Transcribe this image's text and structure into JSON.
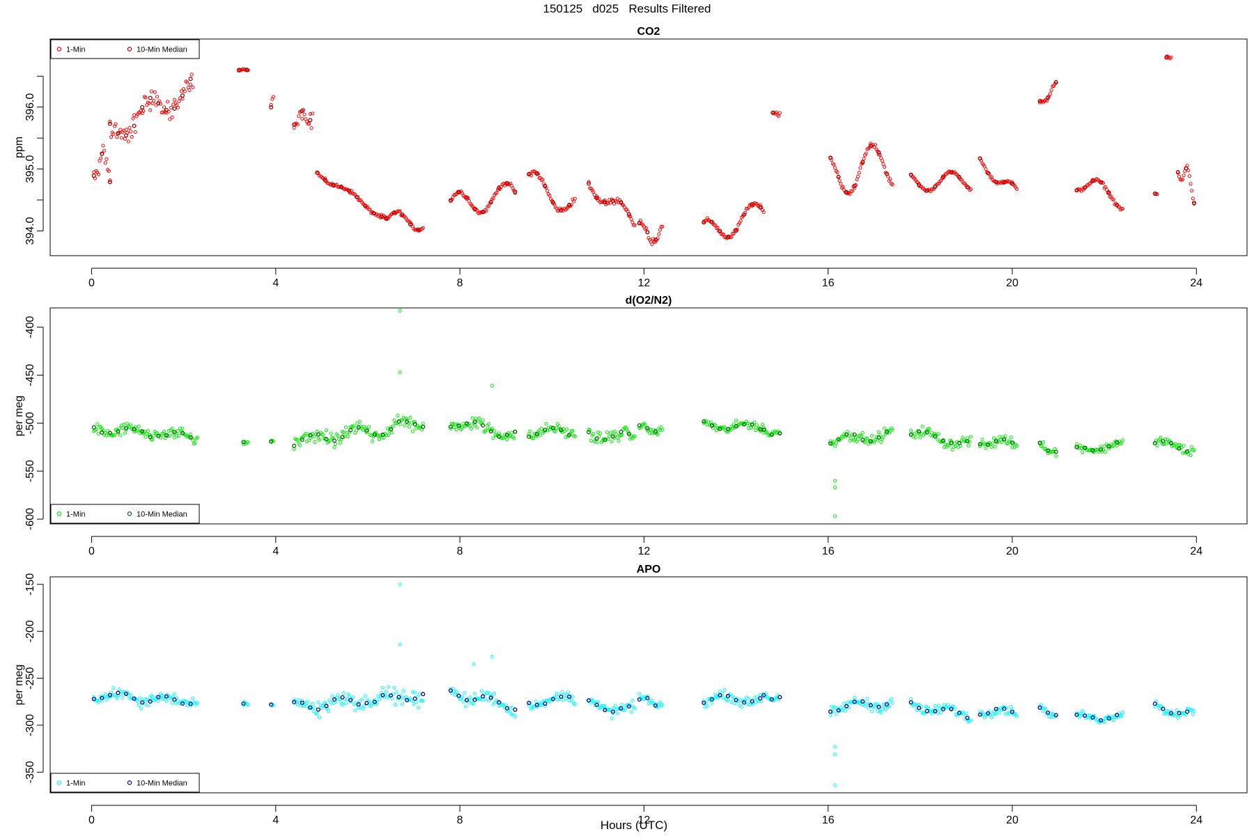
{
  "figure_title": "150125   d025   Results Filtered",
  "x_axis_label": "Hours (UTC)",
  "chart_data": [
    {
      "type": "scatter",
      "title": "CO2",
      "xlabel": "",
      "ylabel": "ppm",
      "xlim": [
        -0.9,
        25.1
      ],
      "ylim": [
        393.6,
        397.1
      ],
      "xticks": [
        0,
        4,
        8,
        12,
        16,
        20,
        24
      ],
      "yticks_labeled": [
        394.0,
        395.0,
        396.0
      ],
      "yticks_minor": [
        394.5,
        395.5,
        396.5
      ],
      "legend_position": "top-left",
      "legend": [
        "1-Min",
        "10-Min Median"
      ],
      "colors": {
        "one_min": "#ff0000",
        "median": "#a00000"
      },
      "segments": [
        {
          "x0": 0.05,
          "x1": 0.4,
          "y0": 395.1,
          "y1": 395.0,
          "amp": 0.25,
          "noise": 0.2
        },
        {
          "x0": 0.4,
          "x1": 2.2,
          "y0": 395.6,
          "y1": 396.3,
          "amp": 0.2,
          "noise": 0.25
        },
        {
          "x0": 3.2,
          "x1": 3.4,
          "y0": 396.6,
          "y1": 396.6,
          "amp": 0.0,
          "noise": 0.02
        },
        {
          "x0": 3.9,
          "x1": 3.95,
          "y0": 396.0,
          "y1": 396.2,
          "amp": 0.0,
          "noise": 0.1
        },
        {
          "x0": 4.4,
          "x1": 4.8,
          "y0": 395.8,
          "y1": 395.9,
          "amp": 0.1,
          "noise": 0.2
        },
        {
          "x0": 4.9,
          "x1": 6.4,
          "y0": 394.95,
          "y1": 394.2,
          "amp": 0.05,
          "noise": 0.04
        },
        {
          "x0": 6.4,
          "x1": 7.2,
          "y0": 394.25,
          "y1": 394.1,
          "amp": 0.1,
          "noise": 0.05
        },
        {
          "x0": 7.8,
          "x1": 9.2,
          "y0": 394.4,
          "y1": 394.6,
          "amp": 0.2,
          "noise": 0.05
        },
        {
          "x0": 9.5,
          "x1": 10.5,
          "y0": 394.8,
          "y1": 394.4,
          "amp": 0.2,
          "noise": 0.06
        },
        {
          "x0": 10.8,
          "x1": 11.8,
          "y0": 394.8,
          "y1": 394.1,
          "amp": 0.15,
          "noise": 0.06
        },
        {
          "x0": 11.9,
          "x1": 12.4,
          "y0": 394.0,
          "y1": 393.95,
          "amp": 0.15,
          "noise": 0.08
        },
        {
          "x0": 13.3,
          "x1": 14.6,
          "y0": 393.95,
          "y1": 394.3,
          "amp": 0.2,
          "noise": 0.05
        },
        {
          "x0": 14.8,
          "x1": 14.95,
          "y0": 395.9,
          "y1": 395.9,
          "amp": 0.0,
          "noise": 0.08
        },
        {
          "x0": 16.05,
          "x1": 17.4,
          "y0": 394.9,
          "y1": 395.1,
          "amp": 0.35,
          "noise": 0.05
        },
        {
          "x0": 17.8,
          "x1": 19.1,
          "y0": 394.8,
          "y1": 394.8,
          "amp": 0.15,
          "noise": 0.03
        },
        {
          "x0": 19.3,
          "x1": 20.1,
          "y0": 395.1,
          "y1": 394.6,
          "amp": 0.1,
          "noise": 0.04
        },
        {
          "x0": 20.6,
          "x1": 20.95,
          "y0": 396.05,
          "y1": 396.35,
          "amp": 0.05,
          "noise": 0.05
        },
        {
          "x0": 21.4,
          "x1": 22.4,
          "y0": 394.8,
          "y1": 394.5,
          "amp": 0.15,
          "noise": 0.04
        },
        {
          "x0": 23.1,
          "x1": 23.15,
          "y0": 394.6,
          "y1": 394.6,
          "amp": 0.0,
          "noise": 0.02
        },
        {
          "x0": 23.35,
          "x1": 23.45,
          "y0": 396.8,
          "y1": 396.8,
          "amp": 0.0,
          "noise": 0.04
        },
        {
          "x0": 23.6,
          "x1": 23.95,
          "y0": 395.1,
          "y1": 394.6,
          "amp": 0.2,
          "noise": 0.08
        }
      ]
    },
    {
      "type": "scatter",
      "title": "d(O2/N2)",
      "xlabel": "",
      "ylabel": "per meg",
      "xlim": [
        -0.9,
        25.1
      ],
      "ylim": [
        -605,
        -380
      ],
      "xticks": [
        0,
        4,
        8,
        12,
        16,
        20,
        24
      ],
      "yticks_labeled": [
        -600,
        -550,
        -500,
        -450,
        -400
      ],
      "yticks_minor": [],
      "legend_position": "bottom-left",
      "legend": [
        "1-Min",
        "10-Min Median"
      ],
      "colors": {
        "one_min": "#00ee00",
        "median": "#006600"
      },
      "outliers": [
        [
          6.7,
          -383
        ],
        [
          6.7,
          -447
        ],
        [
          8.7,
          -461
        ],
        [
          16.15,
          -597
        ],
        [
          16.15,
          -560
        ],
        [
          16.15,
          -567
        ]
      ],
      "segments": [
        {
          "x0": 0.05,
          "x1": 2.3,
          "y0": -506,
          "y1": -515,
          "amp": 4,
          "noise": 9
        },
        {
          "x0": 3.3,
          "x1": 3.4,
          "y0": -520,
          "y1": -520,
          "amp": 0,
          "noise": 5
        },
        {
          "x0": 3.9,
          "x1": 3.95,
          "y0": -519,
          "y1": -519,
          "amp": 0,
          "noise": 2
        },
        {
          "x0": 4.4,
          "x1": 7.2,
          "y0": -520,
          "y1": -500,
          "amp": 5,
          "noise": 12
        },
        {
          "x0": 7.8,
          "x1": 9.2,
          "y0": -498,
          "y1": -512,
          "amp": 5,
          "noise": 10
        },
        {
          "x0": 9.5,
          "x1": 10.5,
          "y0": -510,
          "y1": -508,
          "amp": 4,
          "noise": 8
        },
        {
          "x0": 10.8,
          "x1": 11.8,
          "y0": -512,
          "y1": -515,
          "amp": 4,
          "noise": 10
        },
        {
          "x0": 11.9,
          "x1": 12.4,
          "y0": -505,
          "y1": -508,
          "amp": 3,
          "noise": 7
        },
        {
          "x0": 13.3,
          "x1": 14.6,
          "y0": -502,
          "y1": -505,
          "amp": 4,
          "noise": 7
        },
        {
          "x0": 14.6,
          "x1": 14.95,
          "y0": -508,
          "y1": -512,
          "amp": 2,
          "noise": 4
        },
        {
          "x0": 16.05,
          "x1": 17.4,
          "y0": -518,
          "y1": -512,
          "amp": 4,
          "noise": 8
        },
        {
          "x0": 17.8,
          "x1": 19.1,
          "y0": -510,
          "y1": -522,
          "amp": 4,
          "noise": 8
        },
        {
          "x0": 19.3,
          "x1": 20.1,
          "y0": -520,
          "y1": -520,
          "amp": 3,
          "noise": 8
        },
        {
          "x0": 20.6,
          "x1": 20.95,
          "y0": -522,
          "y1": -532,
          "amp": 2,
          "noise": 5
        },
        {
          "x0": 21.4,
          "x1": 22.4,
          "y0": -528,
          "y1": -522,
          "amp": 3,
          "noise": 6
        },
        {
          "x0": 23.1,
          "x1": 23.95,
          "y0": -520,
          "y1": -528,
          "amp": 3,
          "noise": 7
        }
      ]
    },
    {
      "type": "scatter",
      "title": "APO",
      "xlabel": "Hours (UTC)",
      "ylabel": "per meg",
      "xlim": [
        -0.9,
        25.1
      ],
      "ylim": [
        -372,
        -142
      ],
      "xticks": [
        0,
        4,
        8,
        12,
        16,
        20,
        24
      ],
      "yticks_labeled": [
        -350,
        -300,
        -250,
        -200,
        -150
      ],
      "yticks_minor": [],
      "legend_position": "bottom-left",
      "legend": [
        "1-Min",
        "10-Min Median"
      ],
      "colors": {
        "one_min": "#00ffff",
        "median": "#00008b"
      },
      "outliers": [
        [
          6.7,
          -150
        ],
        [
          6.7,
          -214
        ],
        [
          8.7,
          -227
        ],
        [
          8.3,
          -235
        ],
        [
          16.15,
          -364
        ],
        [
          16.15,
          -323
        ],
        [
          16.15,
          -331
        ]
      ],
      "segments": [
        {
          "x0": 0.05,
          "x1": 2.3,
          "y0": -268,
          "y1": -275,
          "amp": 4,
          "noise": 9
        },
        {
          "x0": 3.3,
          "x1": 3.4,
          "y0": -277,
          "y1": -277,
          "amp": 0,
          "noise": 5
        },
        {
          "x0": 3.9,
          "x1": 3.95,
          "y0": -278,
          "y1": -278,
          "amp": 0,
          "noise": 2
        },
        {
          "x0": 4.4,
          "x1": 7.2,
          "y0": -280,
          "y1": -268,
          "amp": 5,
          "noise": 12
        },
        {
          "x0": 7.8,
          "x1": 9.2,
          "y0": -265,
          "y1": -280,
          "amp": 5,
          "noise": 10
        },
        {
          "x0": 9.5,
          "x1": 10.5,
          "y0": -275,
          "y1": -272,
          "amp": 4,
          "noise": 8
        },
        {
          "x0": 10.8,
          "x1": 11.8,
          "y0": -278,
          "y1": -285,
          "amp": 4,
          "noise": 10
        },
        {
          "x0": 11.9,
          "x1": 12.4,
          "y0": -272,
          "y1": -278,
          "amp": 3,
          "noise": 7
        },
        {
          "x0": 13.3,
          "x1": 14.6,
          "y0": -272,
          "y1": -272,
          "amp": 4,
          "noise": 7
        },
        {
          "x0": 14.6,
          "x1": 14.95,
          "y0": -270,
          "y1": -272,
          "amp": 2,
          "noise": 4
        },
        {
          "x0": 16.05,
          "x1": 17.4,
          "y0": -282,
          "y1": -275,
          "amp": 4,
          "noise": 8
        },
        {
          "x0": 17.8,
          "x1": 19.1,
          "y0": -278,
          "y1": -290,
          "amp": 4,
          "noise": 8
        },
        {
          "x0": 19.3,
          "x1": 20.1,
          "y0": -285,
          "y1": -285,
          "amp": 3,
          "noise": 8
        },
        {
          "x0": 20.6,
          "x1": 20.95,
          "y0": -282,
          "y1": -290,
          "amp": 2,
          "noise": 5
        },
        {
          "x0": 21.4,
          "x1": 22.4,
          "y0": -292,
          "y1": -290,
          "amp": 3,
          "noise": 6
        },
        {
          "x0": 23.1,
          "x1": 23.95,
          "y0": -280,
          "y1": -290,
          "amp": 3,
          "noise": 7
        }
      ]
    }
  ]
}
